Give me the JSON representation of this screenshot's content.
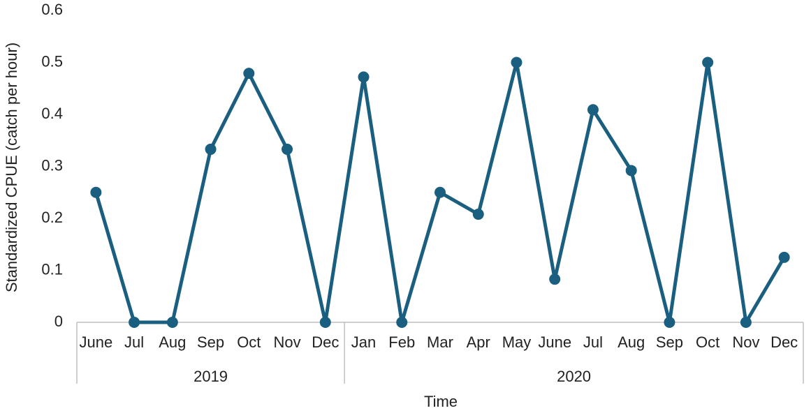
{
  "chart_data": {
    "type": "line",
    "y_label": "Standardized CPUE (catch per hour)",
    "x_label": "Time",
    "groups": [
      {
        "label": "2019",
        "categories": [
          "June",
          "Jul",
          "Aug",
          "Sep",
          "Oct",
          "Nov",
          "Dec"
        ]
      },
      {
        "label": "2020",
        "categories": [
          "Jan",
          "Feb",
          "Mar",
          "Apr",
          "May",
          "June",
          "Jul",
          "Aug",
          "Sep",
          "Oct",
          "Nov",
          "Dec"
        ]
      }
    ],
    "values": [
      0.25,
      0,
      0,
      0.333,
      0.479,
      0.333,
      0,
      0.472,
      0,
      0.25,
      0.208,
      0.5,
      0.083,
      0.409,
      0.292,
      0,
      0.5,
      0,
      0.125
    ],
    "color": "#1b5f80",
    "ylim": [
      0,
      0.6
    ],
    "yticks": [
      0,
      0.1,
      0.2,
      0.3,
      0.4,
      0.5,
      0.6
    ],
    "grid": false
  }
}
